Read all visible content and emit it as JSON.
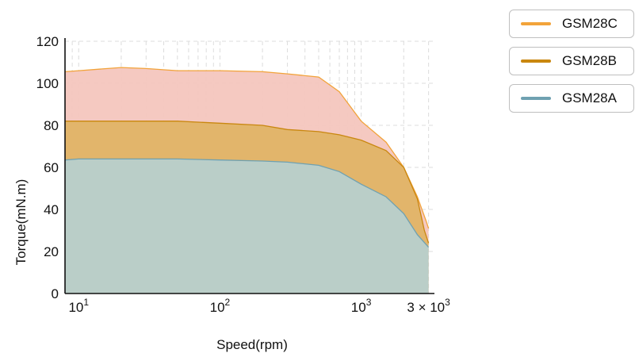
{
  "chart_data": {
    "type": "area",
    "xlabel": "Speed(rpm)",
    "ylabel": "Torque(mN.m)",
    "xscale": "log",
    "xlim": [
      8,
      3300
    ],
    "ylim": [
      0,
      120
    ],
    "grid": true,
    "legend_position": "top-right",
    "x_tick_labels": [
      {
        "value": 10,
        "base": "10",
        "exp": "1"
      },
      {
        "value": 100,
        "base": "10",
        "exp": "2"
      },
      {
        "value": 1000,
        "base": "10",
        "exp": "3"
      },
      {
        "value": 3000,
        "base": "3 × 10",
        "exp": "3"
      }
    ],
    "y_ticks": [
      0,
      20,
      40,
      60,
      80,
      100,
      120
    ],
    "series": [
      {
        "name": "GSM28C",
        "line_color": "#f2a33a",
        "fill_color": "#f4c6be",
        "points": [
          [
            8,
            105.5
          ],
          [
            10,
            106
          ],
          [
            20,
            107.5
          ],
          [
            30,
            107
          ],
          [
            50,
            106
          ],
          [
            100,
            106
          ],
          [
            200,
            105.5
          ],
          [
            300,
            104.5
          ],
          [
            500,
            103
          ],
          [
            700,
            96
          ],
          [
            1000,
            82
          ],
          [
            1500,
            72
          ],
          [
            2000,
            60
          ],
          [
            2500,
            46
          ],
          [
            2900,
            34
          ],
          [
            3000,
            31
          ]
        ]
      },
      {
        "name": "GSM28B",
        "line_color": "#c9870f",
        "fill_color": "#e0b466",
        "points": [
          [
            8,
            82
          ],
          [
            10,
            82
          ],
          [
            20,
            82
          ],
          [
            50,
            82
          ],
          [
            100,
            81
          ],
          [
            200,
            80
          ],
          [
            300,
            78
          ],
          [
            500,
            77
          ],
          [
            700,
            75.5
          ],
          [
            1000,
            73
          ],
          [
            1500,
            68
          ],
          [
            2000,
            60
          ],
          [
            2500,
            45
          ],
          [
            2800,
            30
          ],
          [
            3000,
            24
          ]
        ]
      },
      {
        "name": "GSM28A",
        "line_color": "#6fa1b1",
        "fill_color": "#b7d0cd",
        "points": [
          [
            8,
            63.5
          ],
          [
            10,
            64
          ],
          [
            20,
            64
          ],
          [
            50,
            64
          ],
          [
            100,
            63.5
          ],
          [
            200,
            63
          ],
          [
            300,
            62.5
          ],
          [
            500,
            61
          ],
          [
            700,
            58
          ],
          [
            1000,
            52
          ],
          [
            1500,
            46
          ],
          [
            2000,
            38
          ],
          [
            2500,
            28
          ],
          [
            3000,
            22
          ]
        ]
      }
    ]
  }
}
